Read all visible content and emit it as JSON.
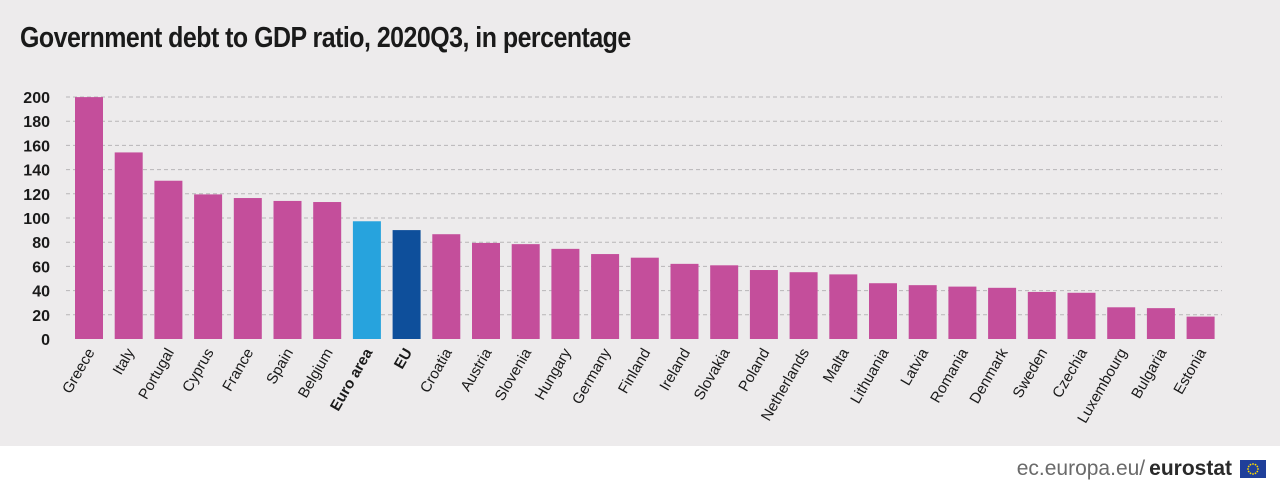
{
  "title": "Government debt to GDP ratio, 2020Q3, in percentage",
  "footer": {
    "site": "ec.europa.eu/",
    "brand": "eurostat",
    "logo_icon": "eu-flag-icon"
  },
  "colors": {
    "country": "#c44e9b",
    "euro_area": "#27a3dd",
    "eu": "#0e4f9b",
    "grid": "#b8b6b7",
    "background": "#edebec"
  },
  "chart_data": {
    "type": "bar",
    "title": "Government debt to GDP ratio, 2020Q3, in percentage",
    "xlabel": "",
    "ylabel": "",
    "ylim": [
      0,
      200
    ],
    "yticks": [
      0,
      20,
      40,
      60,
      80,
      100,
      120,
      140,
      160,
      180,
      200
    ],
    "grid": true,
    "categories": [
      "Greece",
      "Italy",
      "Portugal",
      "Cyprus",
      "France",
      "Spain",
      "Belgium",
      "Euro area",
      "EU",
      "Croatia",
      "Austria",
      "Slovenia",
      "Hungary",
      "Germany",
      "Finland",
      "Ireland",
      "Slovakia",
      "Poland",
      "Netherlands",
      "Malta",
      "Lithuania",
      "Latvia",
      "Romania",
      "Denmark",
      "Sweden",
      "Czechia",
      "Luxembourg",
      "Bulgaria",
      "Estonia"
    ],
    "values": [
      199.9,
      154.2,
      130.8,
      119.5,
      116.5,
      114.1,
      113.2,
      97.3,
      90.0,
      86.6,
      79.4,
      78.4,
      74.5,
      70.2,
      67.2,
      62.1,
      60.9,
      57.0,
      55.2,
      53.4,
      46.1,
      44.5,
      43.3,
      42.3,
      38.9,
      38.2,
      26.2,
      25.5,
      18.5
    ],
    "highlight": {
      "Euro area": "euro_area",
      "EU": "eu"
    },
    "bold_labels": [
      "Euro area",
      "EU"
    ]
  }
}
